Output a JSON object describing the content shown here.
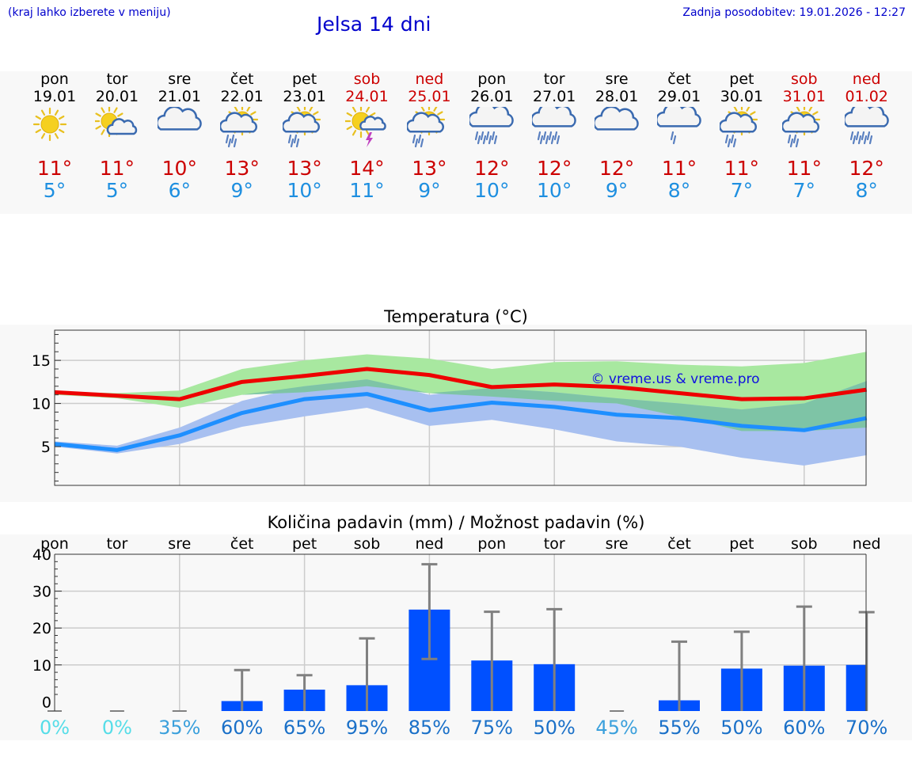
{
  "header": {
    "location_hint": "(kraj lahko izberete v meniju)",
    "title": "Jelsa 14 dni",
    "updated": "Zadnja posodobitev: 19.01.2026 - 12:27"
  },
  "forecast": [
    {
      "day": "pon",
      "date": "19.01",
      "weekend": false,
      "icon": "sun-icon",
      "hi": "11°",
      "lo": "5°"
    },
    {
      "day": "tor",
      "date": "20.01",
      "weekend": false,
      "icon": "sun-cloud-icon",
      "hi": "11°",
      "lo": "5°"
    },
    {
      "day": "sre",
      "date": "21.01",
      "weekend": false,
      "icon": "cloud-icon",
      "hi": "10°",
      "lo": "6°"
    },
    {
      "day": "čet",
      "date": "22.01",
      "weekend": false,
      "icon": "sun-cloud-rain-icon",
      "hi": "13°",
      "lo": "9°"
    },
    {
      "day": "pet",
      "date": "23.01",
      "weekend": false,
      "icon": "sun-cloud-rain-icon",
      "hi": "13°",
      "lo": "10°"
    },
    {
      "day": "sob",
      "date": "24.01",
      "weekend": true,
      "icon": "sun-thunder-icon",
      "hi": "14°",
      "lo": "11°"
    },
    {
      "day": "ned",
      "date": "25.01",
      "weekend": true,
      "icon": "sun-cloud-rain-icon",
      "hi": "13°",
      "lo": "9°"
    },
    {
      "day": "pon",
      "date": "26.01",
      "weekend": false,
      "icon": "cloud-rain-icon",
      "hi": "12°",
      "lo": "10°"
    },
    {
      "day": "tor",
      "date": "27.01",
      "weekend": false,
      "icon": "cloud-rain-icon",
      "hi": "12°",
      "lo": "10°"
    },
    {
      "day": "sre",
      "date": "28.01",
      "weekend": false,
      "icon": "cloud-icon",
      "hi": "12°",
      "lo": "9°"
    },
    {
      "day": "čet",
      "date": "29.01",
      "weekend": false,
      "icon": "cloud-light-rain-icon",
      "hi": "11°",
      "lo": "8°"
    },
    {
      "day": "pet",
      "date": "30.01",
      "weekend": false,
      "icon": "sun-cloud-rain-icon",
      "hi": "11°",
      "lo": "7°"
    },
    {
      "day": "sob",
      "date": "31.01",
      "weekend": true,
      "icon": "sun-cloud-rain-icon",
      "hi": "11°",
      "lo": "7°"
    },
    {
      "day": "ned",
      "date": "01.02",
      "weekend": true,
      "icon": "cloud-rain-icon",
      "hi": "12°",
      "lo": "8°"
    }
  ],
  "colors": {
    "weekday": "#000000",
    "weekend": "#cc0000",
    "hi": "#cc0000",
    "lo": "#1e8fe0",
    "hi_line": "#ee0000",
    "lo_line": "#1e8fff",
    "hi_band": "#a8e8a0",
    "lo_band": "#a8c0f0",
    "overlap_band": "#7ec4a6",
    "bar": "#0050ff",
    "whisker": "#808080"
  },
  "chart_data": [
    {
      "type": "line",
      "title": "Temperatura (°C)",
      "watermark": "© vreme.us & vreme.pro",
      "x": [
        0,
        1,
        2,
        3,
        4,
        5,
        6,
        7,
        8,
        9,
        10,
        11,
        12,
        13
      ],
      "yticks": [
        5,
        10,
        15
      ],
      "ylim": [
        0.5,
        18.5
      ],
      "series": [
        {
          "name": "max",
          "values": [
            11.3,
            10.9,
            10.5,
            12.5,
            13.2,
            14.0,
            13.3,
            11.9,
            12.2,
            11.9,
            11.2,
            10.5,
            10.6,
            11.6
          ]
        },
        {
          "name": "min",
          "values": [
            5.3,
            4.6,
            6.3,
            8.9,
            10.5,
            11.1,
            9.2,
            10.1,
            9.6,
            8.7,
            8.3,
            7.4,
            6.9,
            8.3
          ]
        },
        {
          "name": "max_range_upper",
          "values": [
            11.4,
            11.2,
            11.5,
            14.0,
            15.0,
            15.7,
            15.2,
            14.0,
            14.8,
            14.9,
            14.5,
            14.3,
            14.7,
            16.0
          ]
        },
        {
          "name": "max_range_lower",
          "values": [
            11.0,
            10.6,
            9.5,
            11.0,
            11.3,
            12.0,
            11.2,
            10.8,
            10.3,
            10.0,
            8.5,
            6.8,
            6.8,
            7.2
          ]
        },
        {
          "name": "min_range_upper",
          "values": [
            5.6,
            5.1,
            7.2,
            10.3,
            12.0,
            12.8,
            11.0,
            11.8,
            11.3,
            10.6,
            10.0,
            9.3,
            10.0,
            12.6
          ]
        },
        {
          "name": "min_range_lower",
          "values": [
            5.0,
            4.2,
            5.3,
            7.3,
            8.5,
            9.5,
            7.4,
            8.1,
            7.0,
            5.6,
            5.0,
            3.7,
            2.8,
            4.0
          ]
        }
      ]
    },
    {
      "type": "bar",
      "title": "Količina padavin (mm) / Možnost padavin (%)",
      "categories": [
        "pon",
        "tor",
        "sre",
        "čet",
        "pet",
        "sob",
        "ned",
        "pon",
        "tor",
        "sre",
        "čet",
        "pet",
        "sob",
        "ned"
      ],
      "yticks": [
        0,
        10,
        20,
        30,
        40
      ],
      "ylim": [
        -2.5,
        40
      ],
      "values": [
        0,
        0,
        0,
        0.2,
        3.3,
        4.5,
        25.0,
        11.2,
        10.2,
        0,
        0.4,
        9.0,
        9.8,
        10.0
      ],
      "error_low": [
        0,
        0,
        0,
        0,
        0,
        0,
        11.6,
        0,
        0,
        0,
        0,
        0,
        0,
        0
      ],
      "error_high": [
        0,
        0,
        0,
        8.6,
        7.2,
        17.2,
        37.3,
        24.4,
        25.1,
        0,
        16.3,
        19.0,
        25.8,
        24.3
      ],
      "probability": [
        "0%",
        "0%",
        "35%",
        "60%",
        "65%",
        "95%",
        "85%",
        "75%",
        "50%",
        "45%",
        "55%",
        "50%",
        "60%",
        "70%"
      ],
      "probability_colors": [
        "#55dde8",
        "#55dde8",
        "#3ba0dc",
        "#1a70c8",
        "#1a70c8",
        "#1a70c8",
        "#1a70c8",
        "#1a70c8",
        "#1a70c8",
        "#3ba0dc",
        "#1a70c8",
        "#1a70c8",
        "#1a70c8",
        "#1a70c8"
      ]
    }
  ]
}
